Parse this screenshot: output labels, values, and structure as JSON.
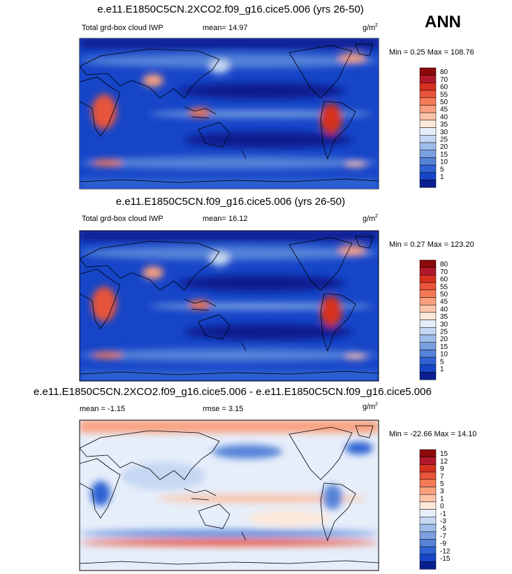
{
  "header": {
    "season": "ANN"
  },
  "panels": [
    {
      "title": "e.e11.E1850C5CN.2XCO2.f09_g16.cice5.006 (yrs 26-50)",
      "field": "Total grd-box cloud IWP",
      "stat": "mean=  14.97",
      "units": "g/m",
      "units_power": "2",
      "minmax": "Min =   0.25 Max = 108.76",
      "levels": [
        "80",
        "70",
        "60",
        "55",
        "50",
        "45",
        "40",
        "35",
        "30",
        "25",
        "20",
        "15",
        "10",
        "5",
        "1"
      ],
      "colors": [
        "#8c0a0a",
        "#b2182b",
        "#d6301f",
        "#e8553a",
        "#f47a56",
        "#f9a07e",
        "#fcc3a8",
        "#fde8da",
        "#e6eefa",
        "#c5d7f2",
        "#9fbdea",
        "#7aa0e0",
        "#5583d8",
        "#2f63d3",
        "#1645c8",
        "#0a1f8f"
      ]
    },
    {
      "title": "e.e11.E1850C5CN.f09_g16.cice5.006 (yrs 26-50)",
      "field": "Total grd-box cloud IWP",
      "stat": "mean=  16.12",
      "units": "g/m",
      "units_power": "2",
      "minmax": "Min =   0.27 Max = 123.20",
      "levels": [
        "80",
        "70",
        "60",
        "55",
        "50",
        "45",
        "40",
        "35",
        "30",
        "25",
        "20",
        "15",
        "10",
        "5",
        "1"
      ],
      "colors": [
        "#8c0a0a",
        "#b2182b",
        "#d6301f",
        "#e8553a",
        "#f47a56",
        "#f9a07e",
        "#fcc3a8",
        "#fde8da",
        "#e6eefa",
        "#c5d7f2",
        "#9fbdea",
        "#7aa0e0",
        "#5583d8",
        "#2f63d3",
        "#1645c8",
        "#0a1f8f"
      ]
    },
    {
      "title": "e.e11.E1850C5CN.2XCO2.f09_g16.cice5.006 - e.e11.E1850C5CN.f09_g16.cice5.006",
      "field": "mean =  -1.15",
      "stat": "rmse =   3.15",
      "units": "g/m",
      "units_power": "2",
      "minmax": "Min = -22.66 Max =  14.10",
      "levels": [
        "15",
        "12",
        "9",
        "7",
        "5",
        "3",
        "1",
        "0",
        "-1",
        "-3",
        "-5",
        "-7",
        "-9",
        "-12",
        "-15"
      ],
      "colors": [
        "#8c0a0a",
        "#b2182b",
        "#d6301f",
        "#e8553a",
        "#f47a56",
        "#f9a07e",
        "#fcc3a8",
        "#fde8da",
        "#e6eefa",
        "#c5d7f2",
        "#9fbdea",
        "#7aa0e0",
        "#5583d8",
        "#2f63d3",
        "#1645c8",
        "#0a1f8f"
      ]
    }
  ]
}
